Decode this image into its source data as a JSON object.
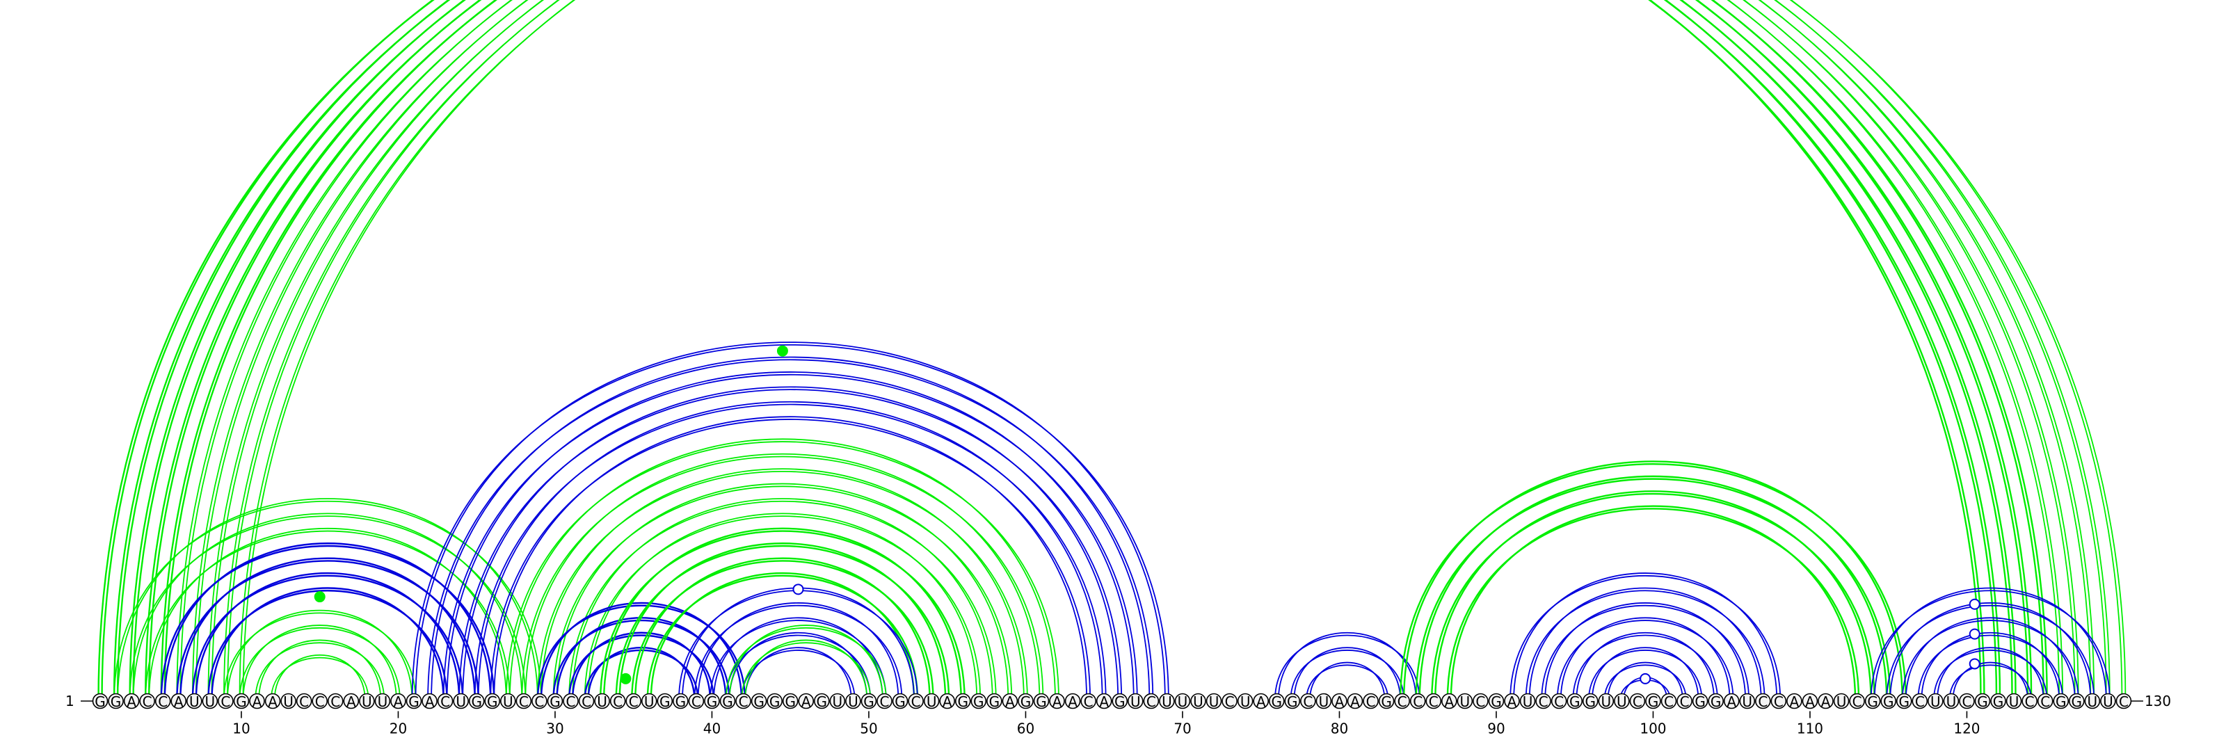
{
  "sequence": "GGACCAUUCGAAUCCCAUUAGACUGGUCCGCCUCCUGGCGGCGGGAGUUGCGCUAGGGAGGAACAGUCUUUUCUAGGCUAACGCCCAUCGAUCCGGUUCGCCGGAUCCAAAUCGGGCUUCGGUCCGGUUC",
  "start_label": "1",
  "end_label": "130",
  "position_labels": [
    {
      "pos": 10,
      "text": "10"
    },
    {
      "pos": 20,
      "text": "20"
    },
    {
      "pos": 30,
      "text": "30"
    },
    {
      "pos": 40,
      "text": "40"
    },
    {
      "pos": 50,
      "text": "50"
    },
    {
      "pos": 60,
      "text": "60"
    },
    {
      "pos": 70,
      "text": "70"
    },
    {
      "pos": 80,
      "text": "80"
    },
    {
      "pos": 90,
      "text": "90"
    },
    {
      "pos": 100,
      "text": "100"
    },
    {
      "pos": 110,
      "text": "110"
    },
    {
      "pos": 120,
      "text": "120"
    }
  ],
  "colors": {
    "green": "#00ee00",
    "blue": "#0000dd"
  },
  "arc_groups": [
    {
      "color": "green",
      "side": "top",
      "bold": true,
      "pairs": [
        [
          1,
          121
        ],
        [
          2,
          122
        ],
        [
          3,
          123
        ],
        [
          4,
          124
        ],
        [
          5,
          125
        ]
      ]
    },
    {
      "color": "green",
      "side": "top",
      "bold": false,
      "pairs": [
        [
          6,
          126
        ],
        [
          7,
          127
        ],
        [
          8,
          128
        ],
        [
          9,
          129
        ],
        [
          10,
          130
        ]
      ]
    },
    {
      "color": "green",
      "side": "top",
      "bold": false,
      "pairs": [
        [
          2,
          29
        ],
        [
          3,
          28
        ],
        [
          4,
          27
        ],
        [
          5,
          26
        ],
        [
          6,
          25
        ]
      ]
    },
    {
      "color": "blue",
      "side": "top",
      "bold": true,
      "pairs": [
        [
          5,
          26
        ],
        [
          6,
          25
        ],
        [
          7,
          24
        ],
        [
          8,
          23
        ]
      ]
    },
    {
      "color": "green",
      "side": "top",
      "bold": false,
      "pairs": [
        [
          9,
          21
        ],
        [
          10,
          20
        ],
        [
          11,
          19
        ],
        [
          12,
          18
        ]
      ]
    },
    {
      "color": "blue",
      "side": "top",
      "bold": false,
      "pairs": [
        [
          21,
          69
        ],
        [
          22,
          68
        ],
        [
          23,
          67
        ],
        [
          24,
          66
        ],
        [
          25,
          65
        ],
        [
          26,
          64
        ]
      ]
    },
    {
      "color": "green",
      "side": "top",
      "bold": false,
      "pairs": [
        [
          27,
          62
        ],
        [
          28,
          61
        ],
        [
          29,
          60
        ],
        [
          30,
          59
        ],
        [
          31,
          58
        ],
        [
          32,
          57
        ],
        [
          33,
          56
        ]
      ]
    },
    {
      "color": "blue",
      "side": "top",
      "bold": true,
      "pairs": [
        [
          29,
          42
        ],
        [
          30,
          41
        ],
        [
          31,
          40
        ],
        [
          32,
          39
        ]
      ]
    },
    {
      "color": "green",
      "side": "top",
      "bold": true,
      "pairs": [
        [
          33,
          56
        ],
        [
          34,
          55
        ],
        [
          35,
          54
        ],
        [
          36,
          53
        ]
      ]
    },
    {
      "color": "blue",
      "side": "top",
      "bold": false,
      "pairs": [
        [
          38,
          53
        ],
        [
          39,
          52
        ],
        [
          40,
          51
        ],
        [
          41,
          50
        ],
        [
          42,
          49
        ]
      ]
    },
    {
      "color": "green",
      "side": "top",
      "bold": false,
      "pairs": [
        [
          41,
          51
        ],
        [
          42,
          50
        ]
      ]
    },
    {
      "color": "blue",
      "side": "top",
      "bold": false,
      "pairs": [
        [
          76,
          85
        ],
        [
          77,
          84
        ],
        [
          78,
          83
        ]
      ]
    },
    {
      "color": "green",
      "side": "top",
      "bold": true,
      "pairs": [
        [
          84,
          116
        ],
        [
          85,
          115
        ],
        [
          86,
          114
        ],
        [
          87,
          113
        ]
      ]
    },
    {
      "color": "blue",
      "side": "top",
      "bold": false,
      "pairs": [
        [
          91,
          108
        ],
        [
          92,
          107
        ],
        [
          93,
          106
        ],
        [
          94,
          105
        ],
        [
          95,
          104
        ],
        [
          96,
          103
        ],
        [
          97,
          102
        ],
        [
          98,
          101
        ]
      ]
    },
    {
      "color": "blue",
      "side": "top",
      "bold": false,
      "pairs": [
        [
          114,
          129
        ],
        [
          115,
          128
        ],
        [
          116,
          127
        ],
        [
          117,
          126
        ],
        [
          118,
          125
        ],
        [
          119,
          124
        ]
      ]
    }
  ],
  "markers": [
    {
      "color": "green",
      "filled": false,
      "pos": 65.5,
      "arc": [
        1,
        130
      ]
    },
    {
      "color": "green",
      "filled": true,
      "pos": 44.5,
      "arc": [
        21,
        68
      ]
    },
    {
      "color": "green",
      "filled": true,
      "pos": 15,
      "arc": [
        8,
        22
      ]
    },
    {
      "color": "blue",
      "filled": false,
      "pos": 45.5,
      "arc": [
        38,
        53
      ]
    },
    {
      "color": "green",
      "filled": true,
      "pos": 34.5,
      "arc": [
        33,
        36
      ]
    },
    {
      "color": "blue",
      "filled": false,
      "pos": 99.5,
      "arc": [
        98,
        101
      ]
    },
    {
      "color": "blue",
      "filled": false,
      "pos": 120.5,
      "arc": [
        114,
        127
      ]
    },
    {
      "color": "blue",
      "filled": false,
      "pos": 120.5,
      "arc": [
        116,
        125
      ]
    },
    {
      "color": "blue",
      "filled": false,
      "pos": 120.5,
      "arc": [
        118,
        123
      ]
    }
  ]
}
